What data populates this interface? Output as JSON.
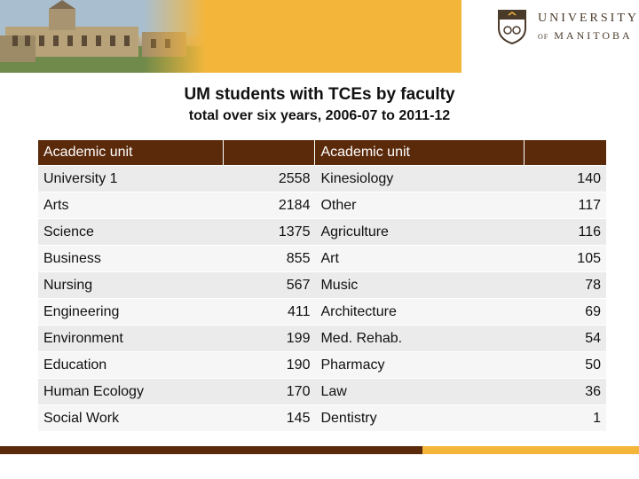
{
  "header": {
    "logo": {
      "line1": "UNIVERSITY",
      "line2_prefix": "OF",
      "line2_main": "MANITOBA"
    }
  },
  "title": "UM students with TCEs by faculty",
  "subtitle": "total over six years, 2006-07 to 2011-12",
  "table": {
    "headers": [
      "Academic unit",
      "",
      "Academic unit",
      ""
    ],
    "rows": [
      {
        "unit_a": "University 1",
        "count_a": "2558",
        "unit_b": "Kinesiology",
        "count_b": "140"
      },
      {
        "unit_a": "Arts",
        "count_a": "2184",
        "unit_b": "Other",
        "count_b": "117"
      },
      {
        "unit_a": "Science",
        "count_a": "1375",
        "unit_b": "Agriculture",
        "count_b": "116"
      },
      {
        "unit_a": "Business",
        "count_a": "855",
        "unit_b": "Art",
        "count_b": "105"
      },
      {
        "unit_a": "Nursing",
        "count_a": "567",
        "unit_b": "Music",
        "count_b": "78"
      },
      {
        "unit_a": "Engineering",
        "count_a": "411",
        "unit_b": "Architecture",
        "count_b": "69"
      },
      {
        "unit_a": "Environment",
        "count_a": "199",
        "unit_b": "Med. Rehab.",
        "count_b": "54"
      },
      {
        "unit_a": "Education",
        "count_a": "190",
        "unit_b": "Pharmacy",
        "count_b": "50"
      },
      {
        "unit_a": "Human Ecology",
        "count_a": "170",
        "unit_b": "Law",
        "count_b": "36"
      },
      {
        "unit_a": "Social Work",
        "count_a": "145",
        "unit_b": "Dentistry",
        "count_b": "1"
      }
    ]
  },
  "colors": {
    "brown": "#5b2a0b",
    "gold": "#f3b63b"
  }
}
